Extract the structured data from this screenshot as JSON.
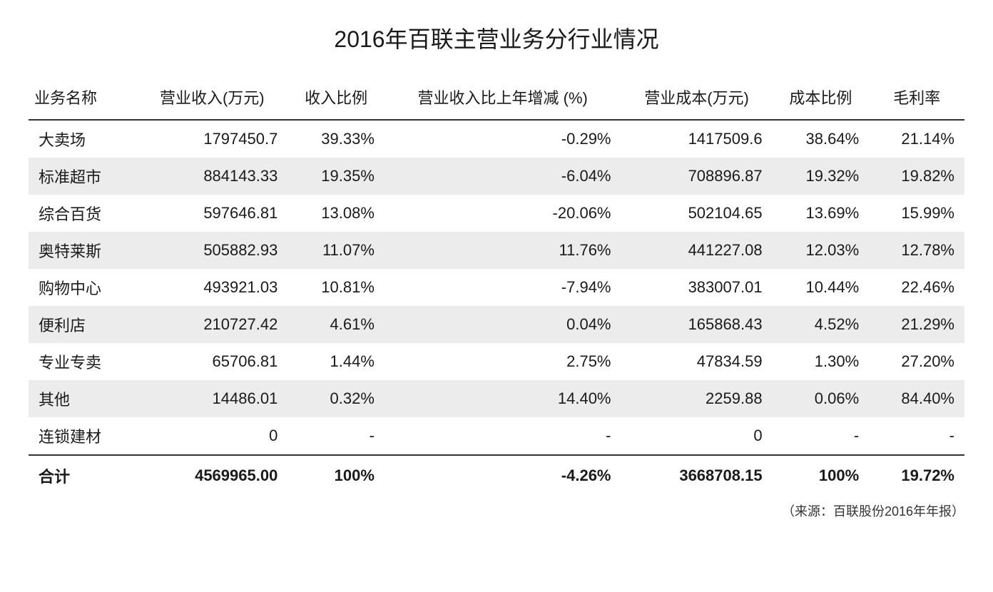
{
  "title": "2016年百联主营业务分行业情况",
  "source": "（来源：百联股份2016年年报）",
  "columns": [
    "业务名称",
    "营业收入(万元)",
    "收入比例",
    "营业收入比上年增减 (%)",
    "营业成本(万元)",
    "成本比例",
    "毛利率"
  ],
  "rows": [
    {
      "name": "大卖场",
      "revenue": "1797450.7",
      "revPct": "39.33%",
      "yoy": "-0.29%",
      "cost": "1417509.6",
      "costPct": "38.64%",
      "gross": "21.14%"
    },
    {
      "name": "标准超市",
      "revenue": "884143.33",
      "revPct": "19.35%",
      "yoy": "-6.04%",
      "cost": "708896.87",
      "costPct": "19.32%",
      "gross": "19.82%"
    },
    {
      "name": "综合百货",
      "revenue": "597646.81",
      "revPct": "13.08%",
      "yoy": "-20.06%",
      "cost": "502104.65",
      "costPct": "13.69%",
      "gross": "15.99%"
    },
    {
      "name": "奥特莱斯",
      "revenue": "505882.93",
      "revPct": "11.07%",
      "yoy": "11.76%",
      "cost": "441227.08",
      "costPct": "12.03%",
      "gross": "12.78%"
    },
    {
      "name": "购物中心",
      "revenue": "493921.03",
      "revPct": "10.81%",
      "yoy": "-7.94%",
      "cost": "383007.01",
      "costPct": "10.44%",
      "gross": "22.46%"
    },
    {
      "name": "便利店",
      "revenue": "210727.42",
      "revPct": "4.61%",
      "yoy": "0.04%",
      "cost": "165868.43",
      "costPct": "4.52%",
      "gross": "21.29%"
    },
    {
      "name": "专业专卖",
      "revenue": "65706.81",
      "revPct": "1.44%",
      "yoy": "2.75%",
      "cost": "47834.59",
      "costPct": "1.30%",
      "gross": "27.20%"
    },
    {
      "name": "其他",
      "revenue": "14486.01",
      "revPct": "0.32%",
      "yoy": "14.40%",
      "cost": "2259.88",
      "costPct": "0.06%",
      "gross": "84.40%"
    },
    {
      "name": "连锁建材",
      "revenue": "0",
      "revPct": "-",
      "yoy": "-",
      "cost": "0",
      "costPct": "-",
      "gross": "-"
    }
  ],
  "total": {
    "label": "合计",
    "revenue": "4569965.00",
    "revPct": "100%",
    "yoy": "-4.26%",
    "cost": "3668708.15",
    "costPct": "100%",
    "gross": "19.72%"
  },
  "style": {
    "stripe_color": "#ececec",
    "border_color": "#333333",
    "text_color": "#1a1a1a",
    "title_fontsize": 32,
    "body_fontsize": 22,
    "col_align": [
      "left",
      "right",
      "right",
      "right",
      "right",
      "right",
      "right"
    ]
  }
}
